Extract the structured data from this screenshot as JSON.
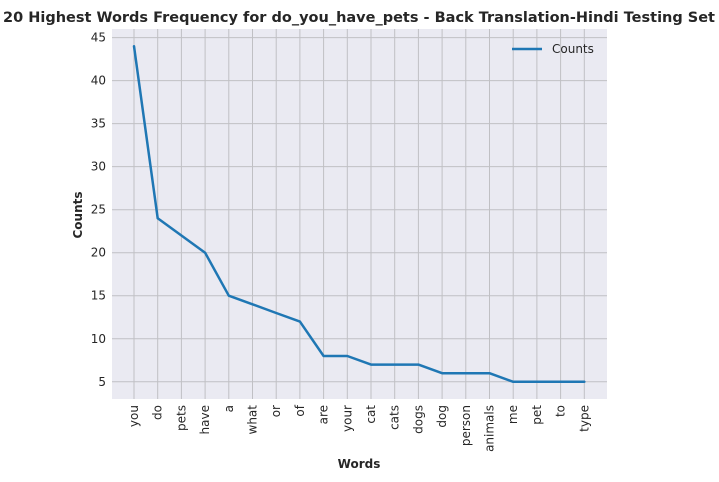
{
  "chart_data": {
    "type": "line",
    "title": "20 Highest Words Frequency for do_you_have_pets - Back Translation-Hindi Testing Set",
    "xlabel": "Words",
    "ylabel": "Counts",
    "categories": [
      "you",
      "do",
      "pets",
      "have",
      "a",
      "what",
      "or",
      "of",
      "are",
      "your",
      "cat",
      "cats",
      "dogs",
      "dog",
      "person",
      "animals",
      "me",
      "pet",
      "to",
      "type"
    ],
    "series": [
      {
        "name": "Counts",
        "color": "#1f77b4",
        "values": [
          44,
          24,
          22,
          20,
          15,
          14,
          13,
          12,
          8,
          8,
          7,
          7,
          7,
          6,
          6,
          6,
          5,
          5,
          5,
          5
        ]
      }
    ],
    "ylim": [
      3,
      46
    ],
    "yticks": [
      5,
      10,
      15,
      20,
      25,
      30,
      35,
      40,
      45
    ],
    "grid": true,
    "legend_position": "top-right",
    "background": "#eaeaf2",
    "grid_color": "#c0c0c4"
  }
}
